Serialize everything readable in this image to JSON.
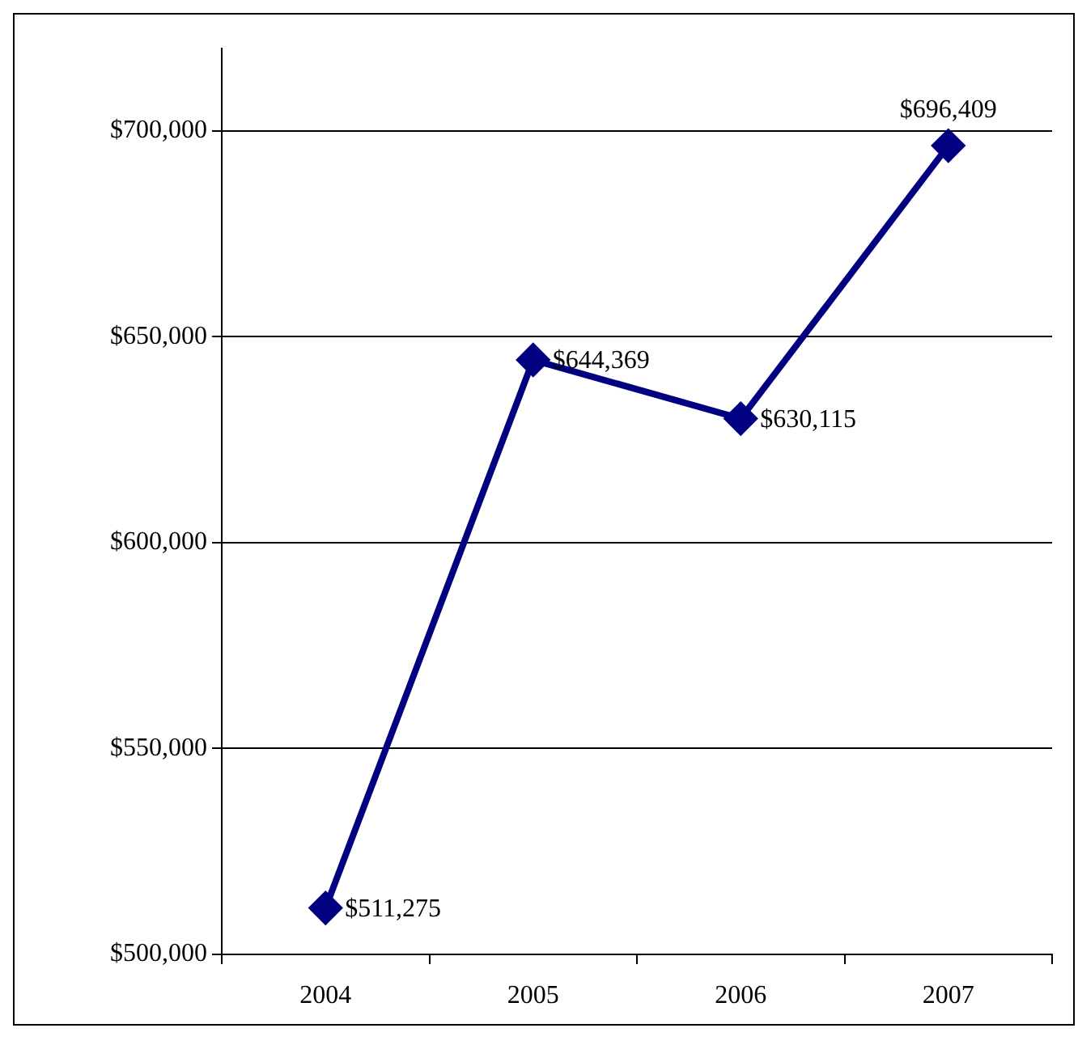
{
  "chart_data": {
    "type": "line",
    "categories": [
      "2004",
      "2005",
      "2006",
      "2007"
    ],
    "series": [
      {
        "color": "#000080",
        "values": [
          511275,
          644369,
          630115,
          696409
        ],
        "value_labels": [
          "$511,275",
          "$644,369",
          "$630,115",
          "$696,409"
        ]
      }
    ],
    "ylim": [
      500000,
      720000
    ],
    "yticks": [
      {
        "value": 500000,
        "label": "$500,000"
      },
      {
        "value": 550000,
        "label": "$550,000"
      },
      {
        "value": 600000,
        "label": "$600,000"
      },
      {
        "value": 650000,
        "label": "$650,000"
      },
      {
        "value": 700000,
        "label": "$700,000"
      }
    ],
    "grid": "y",
    "legend": false,
    "marker": "diamond",
    "line_style": "solid"
  }
}
